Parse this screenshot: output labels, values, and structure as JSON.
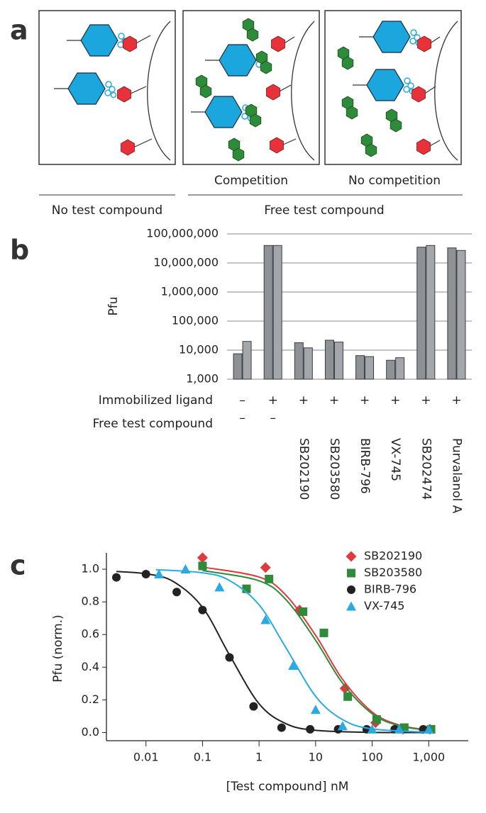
{
  "diagram": {
    "panel_label": "a",
    "box_labels": [
      "Competition",
      "No competition"
    ],
    "group_labels": [
      "No test compound",
      "Free test compound"
    ]
  },
  "chart_data": [
    {
      "type": "bar",
      "panel_label": "b",
      "ylabel": "Pfu",
      "log": true,
      "grid": true,
      "ylim": [
        1000,
        100000000
      ],
      "yticks": [
        {
          "value": 1000,
          "label": "1,000"
        },
        {
          "value": 10000,
          "label": "10,000"
        },
        {
          "value": 100000,
          "label": "100,000"
        },
        {
          "value": 1000000,
          "label": "1,000,000"
        },
        {
          "value": 10000000,
          "label": "10,000,000"
        },
        {
          "value": 100000000,
          "label": "100,000,000"
        }
      ],
      "row_labels": [
        "Immobilized ligand",
        "Free test compound"
      ],
      "immobilized_ligand": [
        "–",
        "+",
        "+",
        "+",
        "+",
        "+",
        "+",
        "+"
      ],
      "categories": [
        "–",
        "–",
        "SB202190",
        "SB203580",
        "BIRB-796",
        "VX-745",
        "SB202474",
        "Purvalanol A"
      ],
      "series": [
        {
          "color": "#8e9196",
          "values": [
            7500,
            40000000,
            18000,
            22000,
            6500,
            4500,
            35000000,
            33000000
          ]
        },
        {
          "color": "#a3a6ab",
          "values": [
            20000,
            40000000,
            12000,
            19000,
            6000,
            5500,
            40000000,
            27000000
          ]
        }
      ]
    },
    {
      "type": "scatter",
      "panel_label": "c",
      "xlabel": "[Test compound] nM",
      "ylabel": "Pfu (norm.)",
      "xlog": true,
      "xlim": [
        0.002,
        5000
      ],
      "ylim": [
        -0.05,
        1.1
      ],
      "xticks": [
        0.01,
        0.1,
        1,
        10,
        100,
        {
          "value": 1000,
          "label": "1,000"
        }
      ],
      "yticks": [
        {
          "value": 0,
          "label": "0.0"
        },
        0.2,
        0.4,
        0.6,
        0.8,
        {
          "value": 1,
          "label": "1.0"
        }
      ],
      "legend": "top-right",
      "series": [
        {
          "name": "SB202190",
          "color": "#e0393e",
          "marker": "diamond",
          "x": [
            0.1,
            1.3,
            5.2,
            33,
            115,
            350,
            1050
          ],
          "values": [
            1.07,
            1.01,
            0.75,
            0.27,
            0.06,
            0.02,
            0.02
          ],
          "fit": {
            "x": [
              0.1,
              1,
              3,
              10,
              30,
              100,
              300,
              1000
            ],
            "values": [
              1.013,
              0.952,
              0.84,
              0.595,
              0.325,
              0.125,
              0.046,
              0.014
            ]
          }
        },
        {
          "name": "SB203580",
          "color": "#2f8a3a",
          "marker": "square",
          "x": [
            0.1,
            0.6,
            1.5,
            6,
            14,
            37,
            120,
            370,
            1100
          ],
          "values": [
            1.02,
            0.88,
            0.94,
            0.74,
            0.61,
            0.22,
            0.08,
            0.03,
            0.02
          ],
          "fit": {
            "x": [
              0.1,
              1,
              3,
              10,
              30,
              100,
              300,
              1000
            ],
            "values": [
              0.992,
              0.929,
              0.813,
              0.565,
              0.302,
              0.115,
              0.042,
              0.013
            ]
          }
        },
        {
          "name": "BIRB-796",
          "color": "#222222",
          "marker": "circle",
          "x": [
            0.003,
            0.01,
            0.035,
            0.1,
            0.3,
            0.8,
            2.5,
            8,
            25,
            80,
            250,
            800
          ],
          "values": [
            0.95,
            0.97,
            0.86,
            0.75,
            0.46,
            0.16,
            0.03,
            0.02,
            0.02,
            0.02,
            0.02,
            0.02
          ],
          "fit": {
            "x": [
              0.003,
              0.01,
              0.03,
              0.1,
              0.3,
              1,
              3,
              10,
              100,
              1000
            ],
            "values": [
              0.986,
              0.972,
              0.926,
              0.767,
              0.475,
              0.176,
              0.054,
              0.0134,
              0.001,
              0
            ]
          }
        },
        {
          "name": "VX-745",
          "color": "#29abe2",
          "marker": "triangle",
          "x": [
            0.017,
            0.05,
            0.2,
            1.3,
            4,
            10,
            30,
            100,
            300,
            1000
          ],
          "values": [
            0.97,
            1,
            0.89,
            0.69,
            0.41,
            0.14,
            0.04,
            0.02,
            0.02,
            0.02
          ],
          "fit": {
            "x": [
              0.015,
              0.1,
              0.3,
              1,
              3,
              10,
              30,
              100,
              1000
            ],
            "values": [
              0.997,
              0.978,
              0.931,
              0.782,
              0.518,
              0.222,
              0.079,
              0.022,
              0.002
            ]
          }
        }
      ]
    }
  ]
}
